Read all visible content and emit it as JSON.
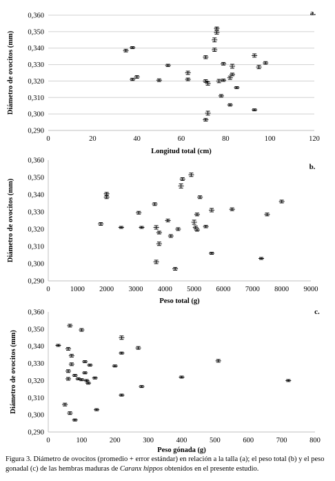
{
  "chart_data": [
    {
      "type": "scatter",
      "panel_label": "a.",
      "xlabel": "Longitud total (cm)",
      "ylabel": "Diámetro de ovocitos (mm)",
      "xlim": [
        0,
        120
      ],
      "ylim": [
        0.29,
        0.36
      ],
      "xticks": [
        0,
        20,
        40,
        60,
        80,
        100,
        120
      ],
      "yticks": [
        "0,290",
        "0,300",
        "0,310",
        "0,320",
        "0,330",
        "0,340",
        "0,350",
        "0,360"
      ],
      "grid": "horizontal",
      "points": [
        {
          "x": 35,
          "y": 0.3385,
          "err": 0.0008
        },
        {
          "x": 38,
          "y": 0.3403,
          "err": 0.0006
        },
        {
          "x": 38,
          "y": 0.321,
          "err": 0.0007
        },
        {
          "x": 40,
          "y": 0.3225,
          "err": 0.0008
        },
        {
          "x": 50,
          "y": 0.3205,
          "err": 0.0008
        },
        {
          "x": 54,
          "y": 0.3295,
          "err": 0.0007
        },
        {
          "x": 63,
          "y": 0.325,
          "err": 0.001
        },
        {
          "x": 63,
          "y": 0.321,
          "err": 0.0008
        },
        {
          "x": 71,
          "y": 0.3345,
          "err": 0.0009
        },
        {
          "x": 71,
          "y": 0.32,
          "err": 0.0008
        },
        {
          "x": 72,
          "y": 0.3185,
          "err": 0.001
        },
        {
          "x": 71,
          "y": 0.2965,
          "err": 0.0008
        },
        {
          "x": 72,
          "y": 0.3005,
          "err": 0.0012
        },
        {
          "x": 75,
          "y": 0.345,
          "err": 0.0012
        },
        {
          "x": 75,
          "y": 0.339,
          "err": 0.001
        },
        {
          "x": 76,
          "y": 0.352,
          "err": 0.0008
        },
        {
          "x": 76,
          "y": 0.3495,
          "err": 0.001
        },
        {
          "x": 77,
          "y": 0.32,
          "err": 0.001
        },
        {
          "x": 78,
          "y": 0.311,
          "err": 0.0008
        },
        {
          "x": 79,
          "y": 0.3305,
          "err": 0.0008
        },
        {
          "x": 79,
          "y": 0.3205,
          "err": 0.0007
        },
        {
          "x": 82,
          "y": 0.322,
          "err": 0.001
        },
        {
          "x": 82,
          "y": 0.3055,
          "err": 0.0007
        },
        {
          "x": 83,
          "y": 0.324,
          "err": 0.0008
        },
        {
          "x": 83,
          "y": 0.329,
          "err": 0.0012
        },
        {
          "x": 85,
          "y": 0.316,
          "err": 0.0006
        },
        {
          "x": 93,
          "y": 0.3355,
          "err": 0.001
        },
        {
          "x": 93,
          "y": 0.3025,
          "err": 0.0006
        },
        {
          "x": 95,
          "y": 0.3285,
          "err": 0.001
        },
        {
          "x": 98,
          "y": 0.331,
          "err": 0.0008
        }
      ]
    },
    {
      "type": "scatter",
      "panel_label": "b.",
      "xlabel": "Peso total (g)",
      "ylabel": "Diámetro de ovocitos (mm)",
      "xlim": [
        0,
        9000
      ],
      "ylim": [
        0.29,
        0.36
      ],
      "xticks": [
        0,
        1000,
        2000,
        3000,
        4000,
        5000,
        6000,
        7000,
        8000,
        9000
      ],
      "yticks": [
        "0,290",
        "0,300",
        "0,310",
        "0,320",
        "0,330",
        "0,340",
        "0,350",
        "0,360"
      ],
      "grid": "none",
      "points": [
        {
          "x": 1800,
          "y": 0.323,
          "err": 0.0008
        },
        {
          "x": 2000,
          "y": 0.3405,
          "err": 0.0008
        },
        {
          "x": 2000,
          "y": 0.3385,
          "err": 0.0008
        },
        {
          "x": 2500,
          "y": 0.321,
          "err": 0.0006
        },
        {
          "x": 3100,
          "y": 0.3295,
          "err": 0.0008
        },
        {
          "x": 3200,
          "y": 0.321,
          "err": 0.0006
        },
        {
          "x": 3650,
          "y": 0.3345,
          "err": 0.0008
        },
        {
          "x": 3700,
          "y": 0.321,
          "err": 0.001
        },
        {
          "x": 3700,
          "y": 0.301,
          "err": 0.001
        },
        {
          "x": 3800,
          "y": 0.318,
          "err": 0.0008
        },
        {
          "x": 3800,
          "y": 0.3115,
          "err": 0.001
        },
        {
          "x": 4100,
          "y": 0.325,
          "err": 0.0008
        },
        {
          "x": 4200,
          "y": 0.316,
          "err": 0.0008
        },
        {
          "x": 4350,
          "y": 0.297,
          "err": 0.0008
        },
        {
          "x": 4450,
          "y": 0.32,
          "err": 0.0008
        },
        {
          "x": 4550,
          "y": 0.345,
          "err": 0.0012
        },
        {
          "x": 4600,
          "y": 0.349,
          "err": 0.0008
        },
        {
          "x": 4900,
          "y": 0.3515,
          "err": 0.001
        },
        {
          "x": 5000,
          "y": 0.324,
          "err": 0.0012
        },
        {
          "x": 5050,
          "y": 0.321,
          "err": 0.0008
        },
        {
          "x": 5100,
          "y": 0.3285,
          "err": 0.0008
        },
        {
          "x": 5100,
          "y": 0.3195,
          "err": 0.0007
        },
        {
          "x": 5200,
          "y": 0.3385,
          "err": 0.0008
        },
        {
          "x": 5400,
          "y": 0.3215,
          "err": 0.0007
        },
        {
          "x": 5600,
          "y": 0.331,
          "err": 0.001
        },
        {
          "x": 5600,
          "y": 0.306,
          "err": 0.0006
        },
        {
          "x": 6300,
          "y": 0.3315,
          "err": 0.0008
        },
        {
          "x": 7300,
          "y": 0.303,
          "err": 0.0006
        },
        {
          "x": 7500,
          "y": 0.3285,
          "err": 0.0008
        },
        {
          "x": 8000,
          "y": 0.336,
          "err": 0.0008
        }
      ]
    },
    {
      "type": "scatter",
      "panel_label": "c.",
      "xlabel": "Peso gónada (g)",
      "ylabel": "Diámetro de ovocitos (mm)",
      "xlim": [
        0,
        800
      ],
      "ylim": [
        0.29,
        0.36
      ],
      "xticks": [
        0,
        100,
        200,
        300,
        400,
        500,
        600,
        700,
        800
      ],
      "yticks": [
        "0,290",
        "0,300",
        "0,310",
        "0,320",
        "0,330",
        "0,340",
        "0,350",
        "0,360"
      ],
      "grid": "none",
      "points": [
        {
          "x": 30,
          "y": 0.3405,
          "err": 0.0006
        },
        {
          "x": 50,
          "y": 0.306,
          "err": 0.0008
        },
        {
          "x": 60,
          "y": 0.3385,
          "err": 0.0008
        },
        {
          "x": 60,
          "y": 0.3255,
          "err": 0.0008
        },
        {
          "x": 60,
          "y": 0.321,
          "err": 0.0008
        },
        {
          "x": 65,
          "y": 0.352,
          "err": 0.0008
        },
        {
          "x": 65,
          "y": 0.301,
          "err": 0.0008
        },
        {
          "x": 70,
          "y": 0.3345,
          "err": 0.0008
        },
        {
          "x": 70,
          "y": 0.3295,
          "err": 0.0008
        },
        {
          "x": 80,
          "y": 0.323,
          "err": 0.0006
        },
        {
          "x": 80,
          "y": 0.297,
          "err": 0.0006
        },
        {
          "x": 90,
          "y": 0.321,
          "err": 0.0006
        },
        {
          "x": 100,
          "y": 0.3495,
          "err": 0.0008
        },
        {
          "x": 100,
          "y": 0.3205,
          "err": 0.0006
        },
        {
          "x": 110,
          "y": 0.331,
          "err": 0.0006
        },
        {
          "x": 110,
          "y": 0.3245,
          "err": 0.0006
        },
        {
          "x": 115,
          "y": 0.32,
          "err": 0.0006
        },
        {
          "x": 120,
          "y": 0.3185,
          "err": 0.0006
        },
        {
          "x": 125,
          "y": 0.329,
          "err": 0.0006
        },
        {
          "x": 140,
          "y": 0.3215,
          "err": 0.0006
        },
        {
          "x": 145,
          "y": 0.303,
          "err": 0.0006
        },
        {
          "x": 200,
          "y": 0.3285,
          "err": 0.0006
        },
        {
          "x": 220,
          "y": 0.345,
          "err": 0.001
        },
        {
          "x": 220,
          "y": 0.336,
          "err": 0.0006
        },
        {
          "x": 220,
          "y": 0.3115,
          "err": 0.0006
        },
        {
          "x": 270,
          "y": 0.339,
          "err": 0.0008
        },
        {
          "x": 280,
          "y": 0.3165,
          "err": 0.0006
        },
        {
          "x": 400,
          "y": 0.322,
          "err": 0.0006
        },
        {
          "x": 510,
          "y": 0.3315,
          "err": 0.0008
        },
        {
          "x": 720,
          "y": 0.32,
          "err": 0.0006
        }
      ]
    }
  ],
  "caption": {
    "part1": "Figura 3. Diámetro de ovocitos (promedio + error estándar) en relación a la talla (a); el peso total (b) y el peso gonadal (c)  de las hembras maduras de ",
    "species": "Caranx hippos",
    "part2": " obtenidos en el presente estudio."
  }
}
